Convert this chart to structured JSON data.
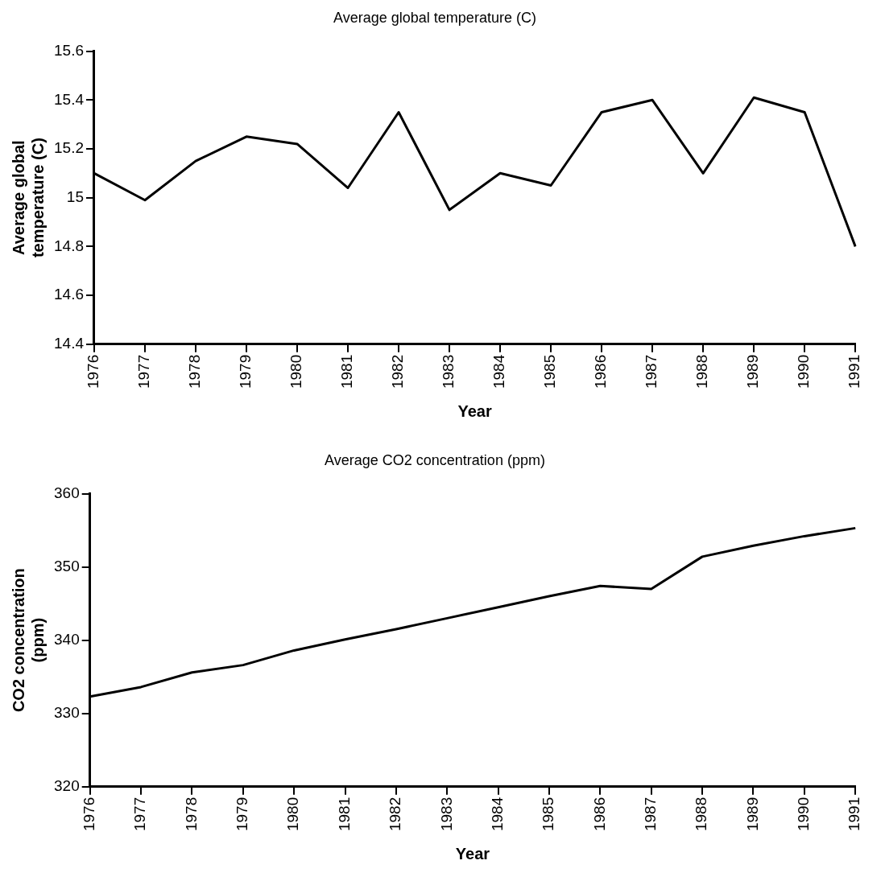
{
  "chart_data": [
    {
      "type": "line",
      "title": "Average global temperature (C)",
      "xlabel": "Year",
      "ylabel": "Average global temperature (C)",
      "categories": [
        "1976",
        "1977",
        "1978",
        "1979",
        "1980",
        "1981",
        "1982",
        "1983",
        "1984",
        "1985",
        "1986",
        "1987",
        "1988",
        "1989",
        "1990",
        "1991"
      ],
      "series": [
        {
          "color": "#000000",
          "values": [
            15.1,
            14.99,
            15.15,
            15.25,
            15.22,
            15.04,
            15.35,
            14.95,
            15.1,
            15.05,
            15.35,
            15.4,
            15.1,
            15.41,
            15.35,
            14.8
          ]
        }
      ],
      "ylim": [
        14.4,
        15.6
      ],
      "yticks": [
        {
          "value": 14.4,
          "label": "14.4"
        },
        {
          "value": 14.6,
          "label": "14.6"
        },
        {
          "value": 14.8,
          "label": "14.8"
        },
        15,
        {
          "value": 15.2,
          "label": "15.2"
        },
        {
          "value": 15.4,
          "label": "15.4"
        },
        {
          "value": 15.6,
          "label": "15.6"
        }
      ],
      "grid": false,
      "legend": false,
      "marker": "none",
      "line_style": "solid"
    },
    {
      "type": "line",
      "title": "Average CO2 concentration (ppm)",
      "xlabel": "Year",
      "ylabel": "CO2 concentration (ppm)",
      "categories": [
        "1976",
        "1977",
        "1978",
        "1979",
        "1980",
        "1981",
        "1982",
        "1983",
        "1984",
        "1985",
        "1986",
        "1987",
        "1988",
        "1989",
        "1990",
        "1991"
      ],
      "series": [
        {
          "color": "#000000",
          "values": [
            332.3,
            333.6,
            335.6,
            336.6,
            338.6,
            340.1,
            341.5,
            343.0,
            344.5,
            346.0,
            347.4,
            347.0,
            351.4,
            352.9,
            354.2,
            355.3
          ]
        }
      ],
      "ylim": [
        320,
        360
      ],
      "yticks": [
        320,
        330,
        340,
        350,
        360
      ],
      "grid": false,
      "legend": false,
      "marker": "none",
      "line_style": "solid"
    }
  ]
}
